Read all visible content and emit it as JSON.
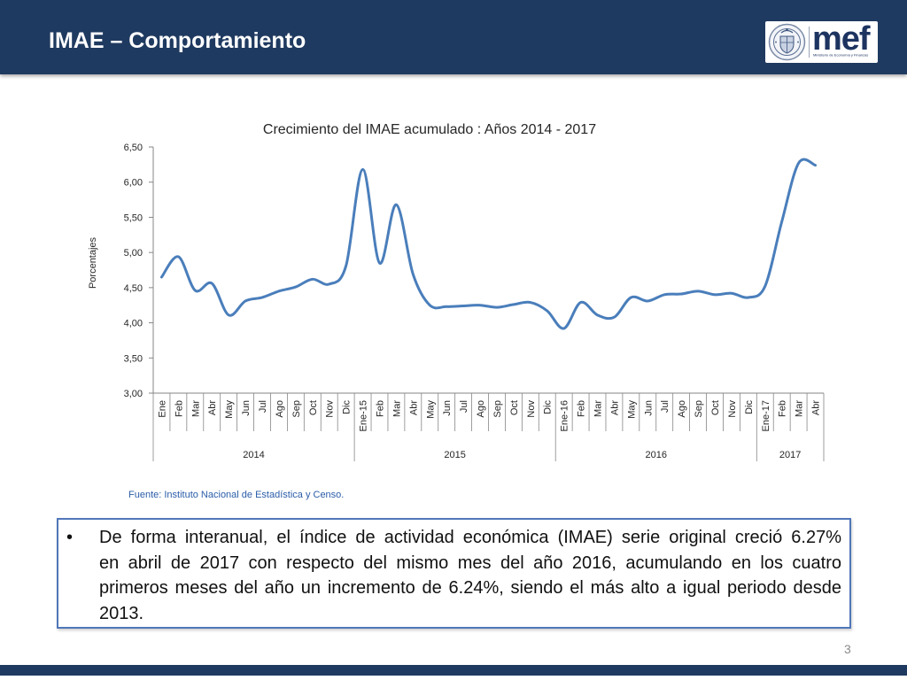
{
  "header": {
    "title": "IMAE – Comportamiento"
  },
  "logo": {
    "wordmark": "mef",
    "subtitle": "Ministerio de Economía y Finanzas",
    "seal_icon": "coat-of-arms-icon"
  },
  "chart_data": {
    "type": "line",
    "smooth": true,
    "title": "Crecimiento del IMAE acumulado : Años 2014 - 2017",
    "xlabel": "",
    "ylabel": "Porcentajes",
    "ylim": [
      3.0,
      6.5
    ],
    "y_ticks": [
      3.0,
      3.5,
      4.0,
      4.5,
      5.0,
      5.5,
      6.0,
      6.5
    ],
    "y_tick_labels": [
      "3,00",
      "3,50",
      "4,00",
      "4,50",
      "5,00",
      "5,50",
      "6,00",
      "6,50"
    ],
    "grid": false,
    "legend": "none",
    "categories": [
      "Ene",
      "Feb",
      "Mar",
      "Abr",
      "May",
      "Jun",
      "Jul",
      "Ago",
      "Sep",
      "Oct",
      "Nov",
      "Dic",
      "Ene-15",
      "Feb",
      "Mar",
      "Abr",
      "May",
      "Jun",
      "Jul",
      "Ago",
      "Sep",
      "Oct",
      "Nov",
      "Dic",
      "Ene-16",
      "Feb",
      "Mar",
      "Abr",
      "May",
      "Jun",
      "Jul",
      "Ago",
      "Sep",
      "Oct",
      "Nov",
      "Dic",
      "Ene-17",
      "Feb",
      "Mar",
      "Abr"
    ],
    "category_groups": [
      {
        "label": "2014",
        "count": 12
      },
      {
        "label": "2015",
        "count": 12
      },
      {
        "label": "2016",
        "count": 12
      },
      {
        "label": "2017",
        "count": 4
      }
    ],
    "values": [
      4.65,
      4.94,
      4.46,
      4.56,
      4.11,
      4.31,
      4.36,
      4.45,
      4.51,
      4.62,
      4.55,
      4.81,
      6.18,
      4.85,
      5.68,
      4.69,
      4.25,
      4.23,
      4.24,
      4.25,
      4.22,
      4.26,
      4.29,
      4.17,
      3.92,
      4.29,
      4.11,
      4.08,
      4.36,
      4.31,
      4.4,
      4.41,
      4.45,
      4.4,
      4.42,
      4.36,
      4.52,
      5.44,
      6.27,
      6.24
    ]
  },
  "source": {
    "text": "Fuente: Instituto Nacional de Estadística y Censo."
  },
  "summary": {
    "marker": "•",
    "lines": [
      "De forma interanual, el índice de actividad económica (IMAE) serie original creció 6.27%",
      "en abril de 2017  con respecto del mismo mes del año 2016, acumulando en los cuatro",
      "primeros meses del año un incremento de 6.24%, siendo el más alto a igual periodo desde",
      "2013."
    ]
  },
  "footer": {
    "page_number": "3"
  },
  "colors": {
    "header_bg": "#1f3a60",
    "footer_bg": "#1f3a60",
    "box_border": "#5077b9",
    "source_text": "#2a5ca8",
    "series_line": "#4a7ebb",
    "axis": "#868686"
  }
}
